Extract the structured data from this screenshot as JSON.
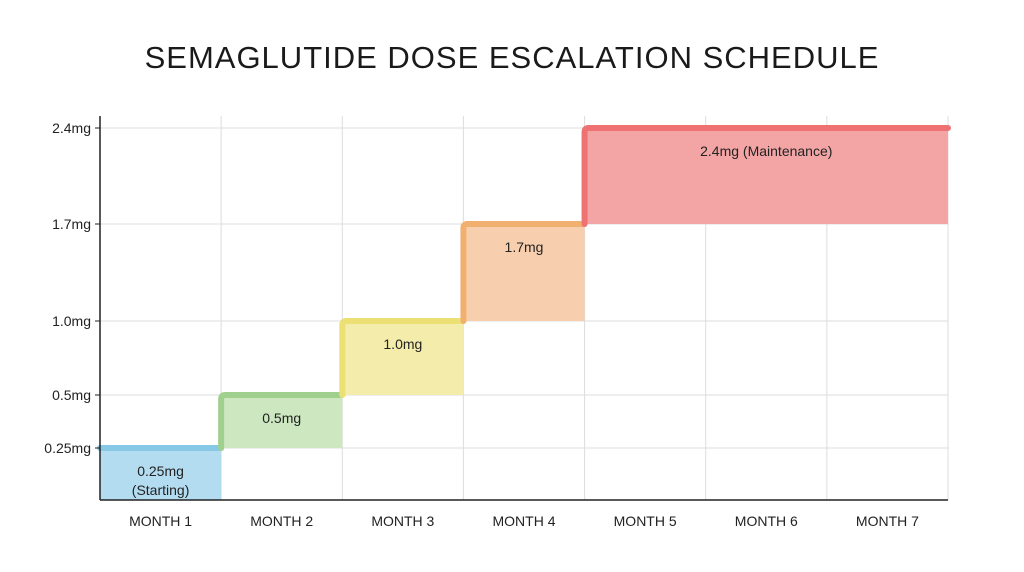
{
  "title": "SEMAGLUTIDE DOSE ESCALATION SCHEDULE",
  "chart_data": {
    "type": "area",
    "title": "SEMAGLUTIDE DOSE ESCALATION SCHEDULE",
    "xlabel": "",
    "ylabel": "",
    "grid": true,
    "categories": [
      "MONTH 1",
      "MONTH 2",
      "MONTH 3",
      "MONTH 4",
      "MONTH 5",
      "MONTH 6",
      "MONTH 7"
    ],
    "y_ticks": [
      {
        "label": "0.25mg",
        "value": 0.25
      },
      {
        "label": "0.5mg",
        "value": 0.5
      },
      {
        "label": "1.0mg",
        "value": 1.0
      },
      {
        "label": "1.7mg",
        "value": 1.7
      },
      {
        "label": "2.4mg",
        "value": 2.4
      }
    ],
    "steps": [
      {
        "start_month": 1,
        "end_month": 1,
        "dose": 0.25,
        "label": "0.25mg\n(Starting)",
        "fill": "#b3dcf0",
        "edge": "#86c8e6"
      },
      {
        "start_month": 2,
        "end_month": 2,
        "dose": 0.5,
        "label": "0.5mg",
        "fill": "#cde8c0",
        "edge": "#9fd08e"
      },
      {
        "start_month": 3,
        "end_month": 3,
        "dose": 1.0,
        "label": "1.0mg",
        "fill": "#f4ecaa",
        "edge": "#ece074"
      },
      {
        "start_month": 4,
        "end_month": 4,
        "dose": 1.7,
        "label": "1.7mg",
        "fill": "#f8cfae",
        "edge": "#f2b070"
      },
      {
        "start_month": 5,
        "end_month": 7,
        "dose": 2.4,
        "label": "2.4mg (Maintenance)",
        "fill": "#f3a5a5",
        "edge": "#ee7272"
      }
    ]
  }
}
